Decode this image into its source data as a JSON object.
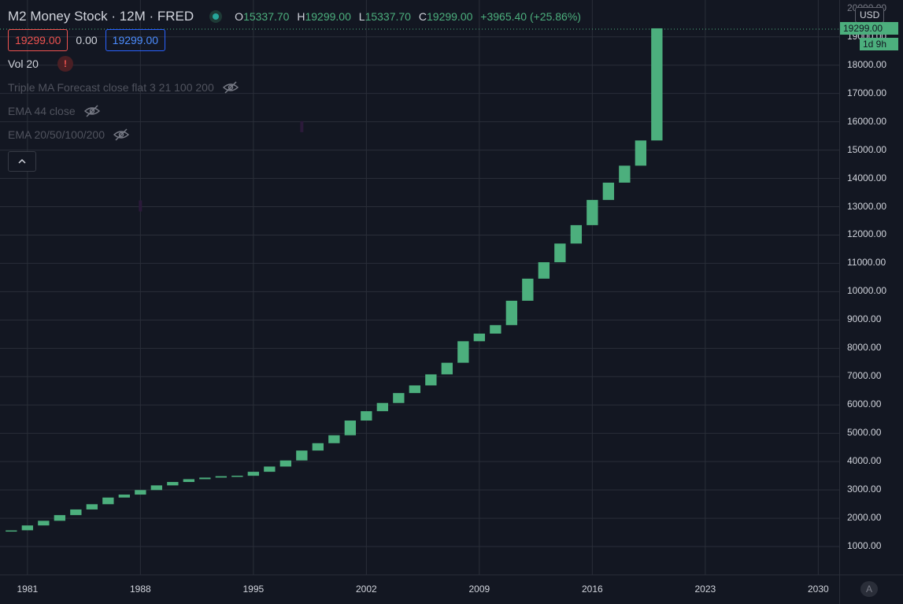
{
  "legend": {
    "title": "M2 Money Stock · 12M · FRED",
    "ohlc": {
      "o_label": "O",
      "o": "15337.70",
      "h_label": "H",
      "h": "19299.00",
      "l_label": "L",
      "l": "15337.70",
      "c_label": "C",
      "c": "19299.00",
      "change": "+3965.40 (+25.86%)"
    },
    "values": {
      "red": "19299.00",
      "mid": "0.00",
      "blue": "19299.00"
    },
    "indicators": [
      {
        "label": "Vol 20",
        "icon": "warning-icon",
        "badge": "!"
      },
      {
        "label": "Triple MA Forecast close flat 3 21 100 200",
        "icon": "eye-hidden-icon"
      },
      {
        "label": "EMA 44 close",
        "icon": "eye-hidden-icon"
      },
      {
        "label": "EMA 20/50/100/200",
        "icon": "eye-hidden-icon"
      }
    ],
    "collapse_icon": "chevron-up-icon"
  },
  "axis": {
    "currency": "USD",
    "price_tag": "19299.00",
    "countdown": "1d 9h",
    "auto_button": "A",
    "top_partial_label": "20000.00"
  },
  "colors": {
    "up": "#4caf7d",
    "bg": "#131722",
    "grid": "#2a2e39",
    "text": "#d1d4dc"
  },
  "chart_data": {
    "type": "candlestick",
    "title": "M2 Money Stock",
    "interval": "12M",
    "source": "FRED",
    "ylim": [
      0,
      20300
    ],
    "xlim": [
      1979.3,
      2031.3
    ],
    "yticks": [
      1000,
      2000,
      3000,
      4000,
      5000,
      6000,
      7000,
      8000,
      9000,
      10000,
      11000,
      12000,
      13000,
      14000,
      15000,
      16000,
      17000,
      18000,
      19000
    ],
    "ytick_labels": [
      "1000.00",
      "2000.00",
      "3000.00",
      "4000.00",
      "5000.00",
      "6000.00",
      "7000.00",
      "8000.00",
      "9000.00",
      "10000.00",
      "11000.00",
      "12000.00",
      "13000.00",
      "14000.00",
      "15000.00",
      "16000.00",
      "17000.00",
      "18000.00",
      "19000.00"
    ],
    "xticks": [
      1981,
      1988,
      1995,
      2002,
      2009,
      2016,
      2023,
      2030
    ],
    "grid": true,
    "candles": [
      {
        "year": 1980,
        "o": 1545,
        "c": 1570
      },
      {
        "year": 1981,
        "o": 1575,
        "c": 1745
      },
      {
        "year": 1982,
        "o": 1745,
        "c": 1910
      },
      {
        "year": 1983,
        "o": 1910,
        "c": 2110
      },
      {
        "year": 1984,
        "o": 2110,
        "c": 2310
      },
      {
        "year": 1985,
        "o": 2310,
        "c": 2495
      },
      {
        "year": 1986,
        "o": 2495,
        "c": 2730
      },
      {
        "year": 1987,
        "o": 2730,
        "c": 2835
      },
      {
        "year": 1988,
        "o": 2835,
        "c": 2995
      },
      {
        "year": 1989,
        "o": 2995,
        "c": 3160
      },
      {
        "year": 1990,
        "o": 3160,
        "c": 3280
      },
      {
        "year": 1991,
        "o": 3280,
        "c": 3380
      },
      {
        "year": 1992,
        "o": 3380,
        "c": 3435
      },
      {
        "year": 1993,
        "o": 3435,
        "c": 3485
      },
      {
        "year": 1994,
        "o": 3485,
        "c": 3500
      },
      {
        "year": 1995,
        "o": 3500,
        "c": 3640
      },
      {
        "year": 1996,
        "o": 3640,
        "c": 3825
      },
      {
        "year": 1997,
        "o": 3825,
        "c": 4040
      },
      {
        "year": 1998,
        "o": 4040,
        "c": 4390
      },
      {
        "year": 1999,
        "o": 4390,
        "c": 4650
      },
      {
        "year": 2000,
        "o": 4650,
        "c": 4930
      },
      {
        "year": 2001,
        "o": 4930,
        "c": 5450
      },
      {
        "year": 2002,
        "o": 5450,
        "c": 5780
      },
      {
        "year": 2003,
        "o": 5780,
        "c": 6070
      },
      {
        "year": 2004,
        "o": 6070,
        "c": 6420
      },
      {
        "year": 2005,
        "o": 6420,
        "c": 6690
      },
      {
        "year": 2006,
        "o": 6690,
        "c": 7080
      },
      {
        "year": 2007,
        "o": 7080,
        "c": 7490
      },
      {
        "year": 2008,
        "o": 7490,
        "c": 8250
      },
      {
        "year": 2009,
        "o": 8250,
        "c": 8520
      },
      {
        "year": 2010,
        "o": 8520,
        "c": 8820
      },
      {
        "year": 2011,
        "o": 8820,
        "c": 9680
      },
      {
        "year": 2012,
        "o": 9680,
        "c": 10460
      },
      {
        "year": 2013,
        "o": 10460,
        "c": 11040
      },
      {
        "year": 2014,
        "o": 11040,
        "c": 11700
      },
      {
        "year": 2015,
        "o": 11700,
        "c": 12350
      },
      {
        "year": 2016,
        "o": 12350,
        "c": 13240
      },
      {
        "year": 2017,
        "o": 13240,
        "c": 13850
      },
      {
        "year": 2018,
        "o": 13850,
        "c": 14450
      },
      {
        "year": 2019,
        "o": 14450,
        "c": 15340
      },
      {
        "year": 2020,
        "o": 15340,
        "c": 19300
      }
    ],
    "volume_marks": [
      {
        "year": 1988,
        "y": 13000
      },
      {
        "year": 1998,
        "y": 15800
      }
    ]
  }
}
